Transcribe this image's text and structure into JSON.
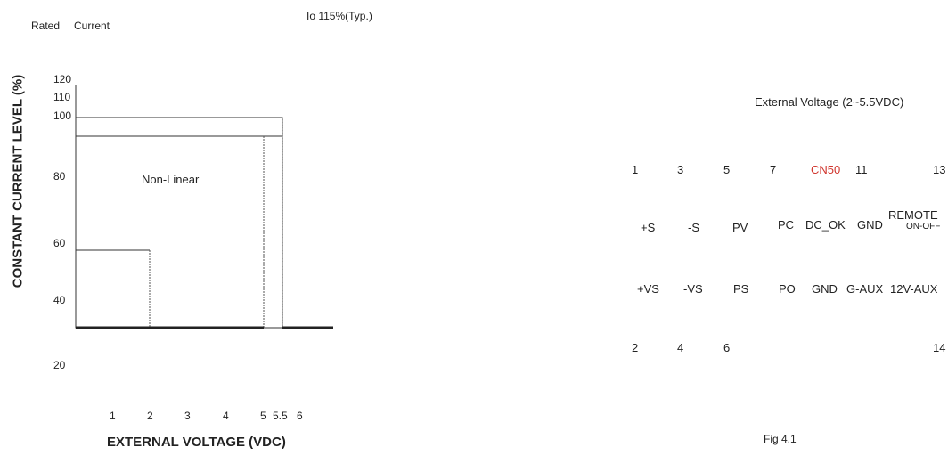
{
  "chart_data": {
    "type": "line",
    "title": "Io 115%(Typ.)",
    "top_left_label_1": "Rated",
    "top_left_label_2": "Current",
    "ylabel": "CONSTANT CURRENT LEVEL (%)",
    "xlabel": "EXTERNAL VOLTAGE (VDC)",
    "y_ticks": [
      "120",
      "110",
      "100",
      "80",
      "60",
      "40",
      "20"
    ],
    "x_ticks": [
      "1",
      "2",
      "3",
      "4",
      "5",
      "5.5",
      "6"
    ],
    "annotation": "Non-Linear"
  },
  "connector": {
    "title": "External Voltage (2~5.5VDC)",
    "top_numbers": [
      "1",
      "3",
      "5",
      "7",
      "CN50",
      "11",
      "13"
    ],
    "row1": [
      "+S",
      "-S",
      "PV",
      "PC",
      "DC_OK",
      "GND"
    ],
    "remote_top": "REMOTE",
    "remote_bottom": "ON-OFF",
    "row2": [
      "+VS",
      "-VS",
      "PS",
      "PO",
      "GND",
      "G-AUX",
      "12V-AUX"
    ],
    "bottom_numbers": [
      "2",
      "4",
      "6",
      "14"
    ],
    "caption": "Fig 4.1"
  }
}
